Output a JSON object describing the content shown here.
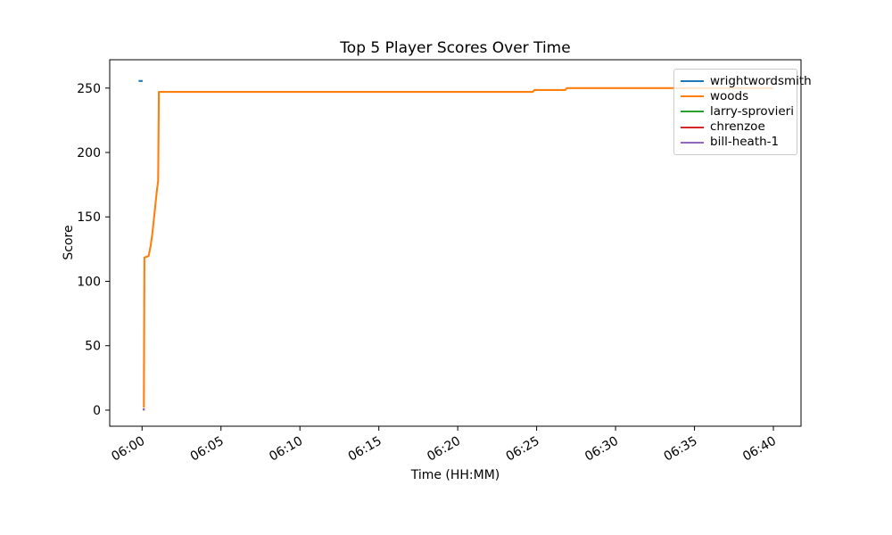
{
  "colors": {
    "background": "#ffffff",
    "text": "#000000",
    "axes": "#000000",
    "legend_border": "#cccccc"
  },
  "chart_data": {
    "type": "line",
    "title": "Top 5 Player Scores Over Time",
    "xlabel": "Time (HH:MM)",
    "ylabel": "Score",
    "grid": false,
    "legend_position": "upper right",
    "x_ticks": [
      "06:00",
      "06:05",
      "06:10",
      "06:15",
      "06:20",
      "06:25",
      "06:30",
      "06:35",
      "06:40"
    ],
    "y_ticks": [
      0,
      50,
      100,
      150,
      200,
      250
    ],
    "xlim": [
      "05:57:57",
      "06:41:45"
    ],
    "ylim": [
      -12.5,
      272
    ],
    "series": [
      {
        "name": "wrightwordsmith",
        "color": "#1f77b4",
        "points": [
          [
            "05:59:47",
            255.5
          ],
          [
            "06:00:02",
            255.5
          ]
        ]
      },
      {
        "name": "woods",
        "color": "#ff7f0e",
        "points": [
          [
            "06:00:07",
            2
          ],
          [
            "06:00:09",
            118.5
          ],
          [
            "06:00:25",
            119.5
          ],
          [
            "06:00:33",
            128
          ],
          [
            "06:00:39",
            137
          ],
          [
            "06:00:44",
            146
          ],
          [
            "06:00:50",
            158
          ],
          [
            "06:00:56",
            170
          ],
          [
            "06:01:01",
            178
          ],
          [
            "06:01:04",
            247
          ],
          [
            "06:24:45",
            247
          ],
          [
            "06:24:52",
            248.5
          ],
          [
            "06:26:49",
            248.5
          ],
          [
            "06:26:55",
            250
          ],
          [
            "06:40:00",
            250
          ]
        ]
      },
      {
        "name": "larry-sprovieri",
        "color": "#2ca02c",
        "points": [
          [
            "06:00:03",
            0.5
          ],
          [
            "06:00:10",
            0.5
          ]
        ]
      },
      {
        "name": "chrenzoe",
        "color": "#d62728",
        "points": [
          [
            "06:00:03",
            0.5
          ],
          [
            "06:00:10",
            0.5
          ]
        ]
      },
      {
        "name": "bill-heath-1",
        "color": "#9467bd",
        "points": [
          [
            "06:00:03",
            0.5
          ],
          [
            "06:00:10",
            0.5
          ]
        ]
      }
    ]
  }
}
